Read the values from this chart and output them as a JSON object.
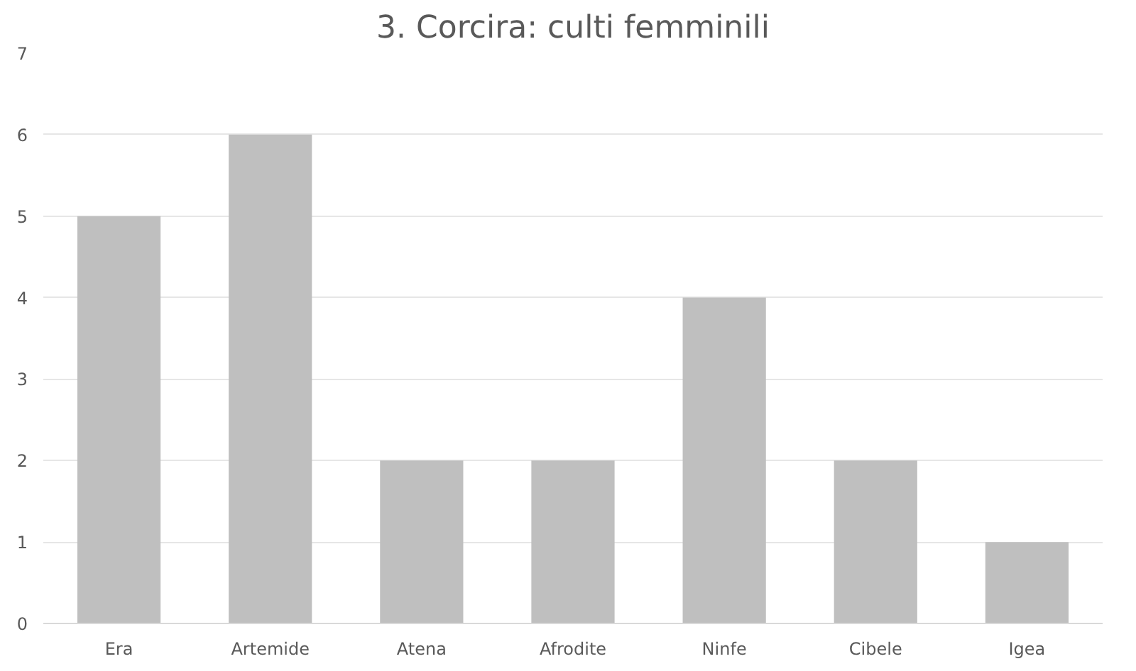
{
  "chart_data": {
    "type": "bar",
    "title": "3. Corcira: culti femminili",
    "categories": [
      "Era",
      "Artemide",
      "Atena",
      "Afrodite",
      "Ninfe",
      "Cibele",
      "Igea"
    ],
    "values": [
      5,
      6,
      2,
      2,
      4,
      2,
      1
    ],
    "color": "#bfbfbf",
    "ylim": [
      0,
      7
    ],
    "yticks": [
      0,
      1,
      2,
      3,
      4,
      5,
      6,
      7
    ],
    "grid": "y"
  }
}
